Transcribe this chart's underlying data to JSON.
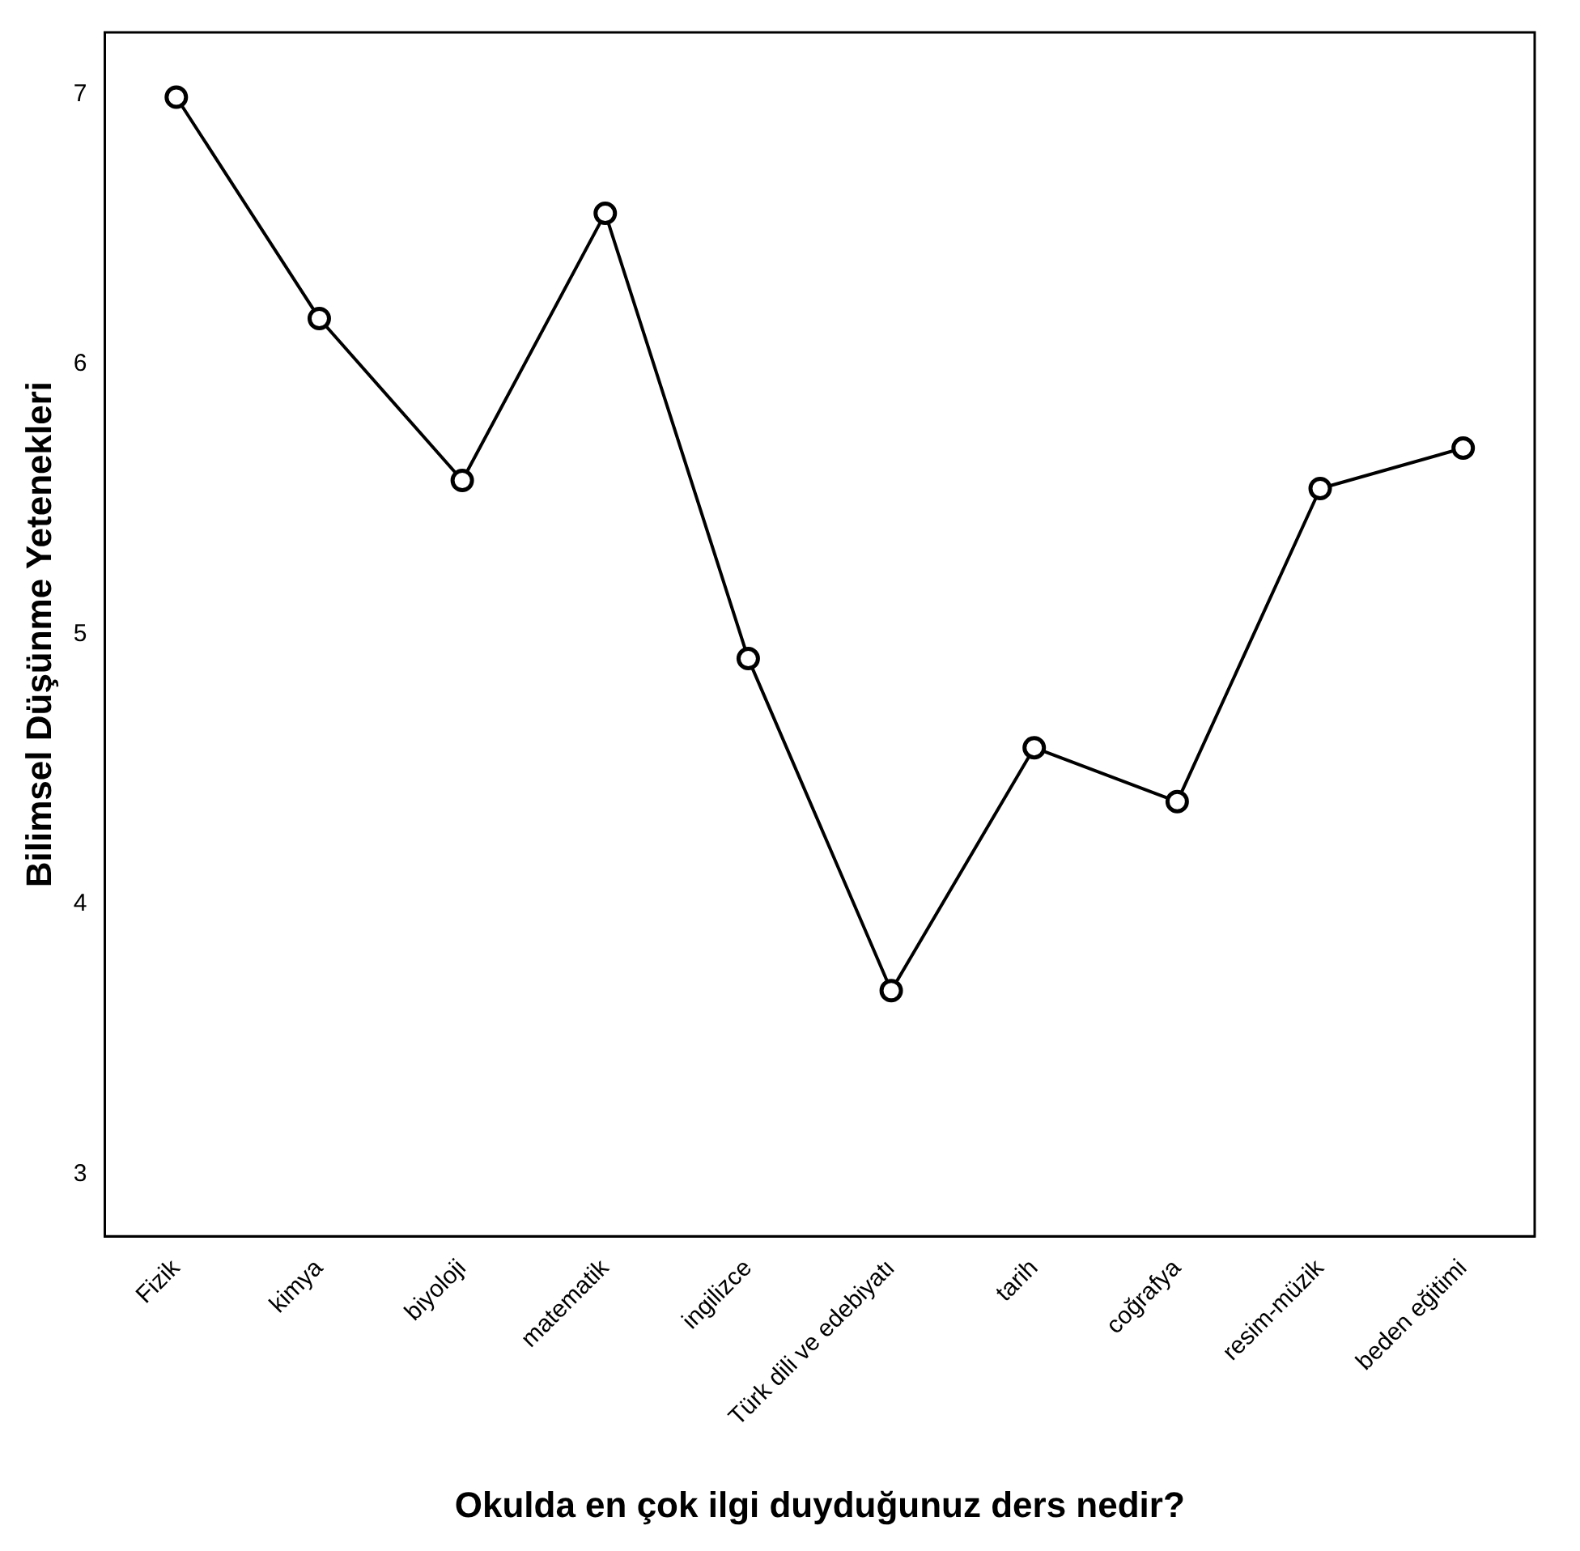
{
  "chart_data": {
    "type": "line",
    "xlabel": "Okulda en çok ilgi duyduğunuz ders nedir?",
    "ylabel": "Bilimsel Düşünme Yetenekleri",
    "categories": [
      "Fizik",
      "kimya",
      "biyoloji",
      "matematik",
      "ingilizce",
      "Türk dili ve edebiyatı",
      "tarih",
      "coğrafya",
      "resim-müzik",
      "beden eğitimi"
    ],
    "series": [
      {
        "color": "#000000",
        "values": [
          6.99,
          6.17,
          5.57,
          6.56,
          4.91,
          3.68,
          4.58,
          4.38,
          5.54,
          5.69
        ]
      }
    ],
    "ylim": [
      2.77,
      7.23
    ],
    "yticks": [
      3,
      4,
      5,
      6,
      7
    ],
    "grid": false,
    "legend": false,
    "marker": "circle",
    "line_style": "solid"
  }
}
